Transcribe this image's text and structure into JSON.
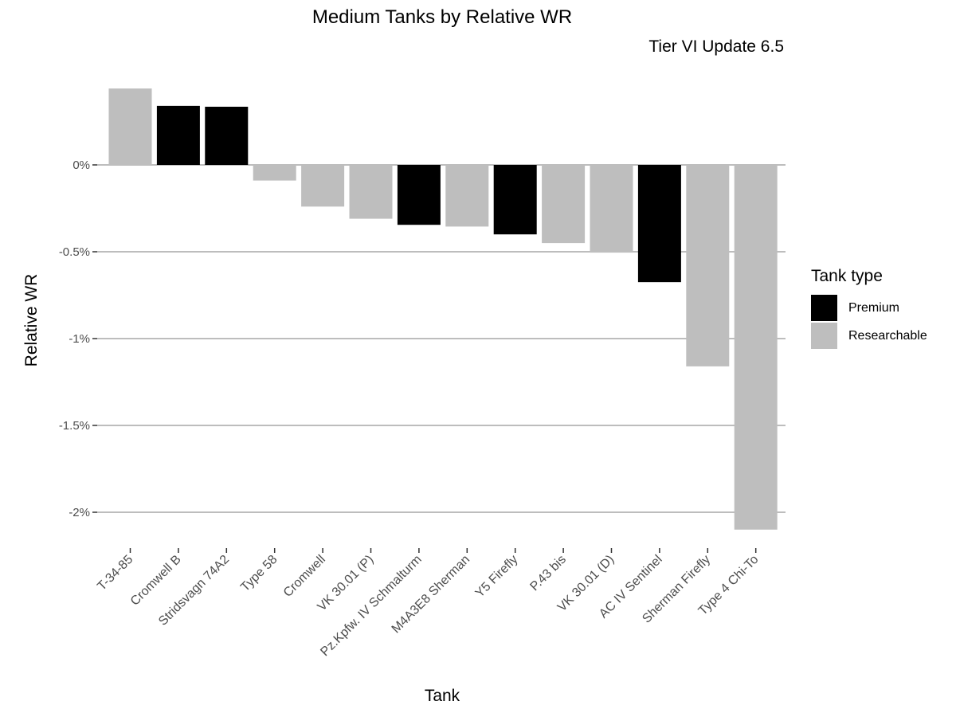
{
  "chart_data": {
    "type": "bar",
    "title": "Medium Tanks by Relative WR",
    "subtitle": "Tier VI Update 6.5",
    "xlabel": "Tank",
    "ylabel": "Relative WR",
    "ylim": [
      -2.1,
      0.44
    ],
    "yticks": [
      0,
      -0.5,
      -1,
      -1.5,
      -2
    ],
    "ytick_labels": [
      "0%",
      "-0.5%",
      "-1%",
      "-1.5%",
      "-2%"
    ],
    "categories": [
      "T-34-85",
      "Cromwell B",
      "Stridsvagn 74A2",
      "Type 58",
      "Cromwell",
      "VK 30.01 (P)",
      "Pz.Kpfw. IV Schmalturm",
      "M4A3E8 Sherman",
      "Y5 Firefly",
      "P.43 bis",
      "VK 30.01 (D)",
      "AC IV Sentinel",
      "Sherman Firefly",
      "Type 4 Chi-To"
    ],
    "values": [
      0.44,
      0.34,
      0.335,
      -0.09,
      -0.24,
      -0.31,
      -0.345,
      -0.355,
      -0.4,
      -0.45,
      -0.505,
      -0.675,
      -1.16,
      -2.1
    ],
    "groups": [
      "Researchable",
      "Premium",
      "Premium",
      "Researchable",
      "Researchable",
      "Researchable",
      "Premium",
      "Researchable",
      "Premium",
      "Researchable",
      "Researchable",
      "Premium",
      "Researchable",
      "Researchable"
    ],
    "legend": {
      "title": "Tank type",
      "position": "right",
      "entries": [
        {
          "name": "Premium",
          "color": "#000000"
        },
        {
          "name": "Researchable",
          "color": "#bebebe"
        }
      ]
    },
    "grid": true
  }
}
